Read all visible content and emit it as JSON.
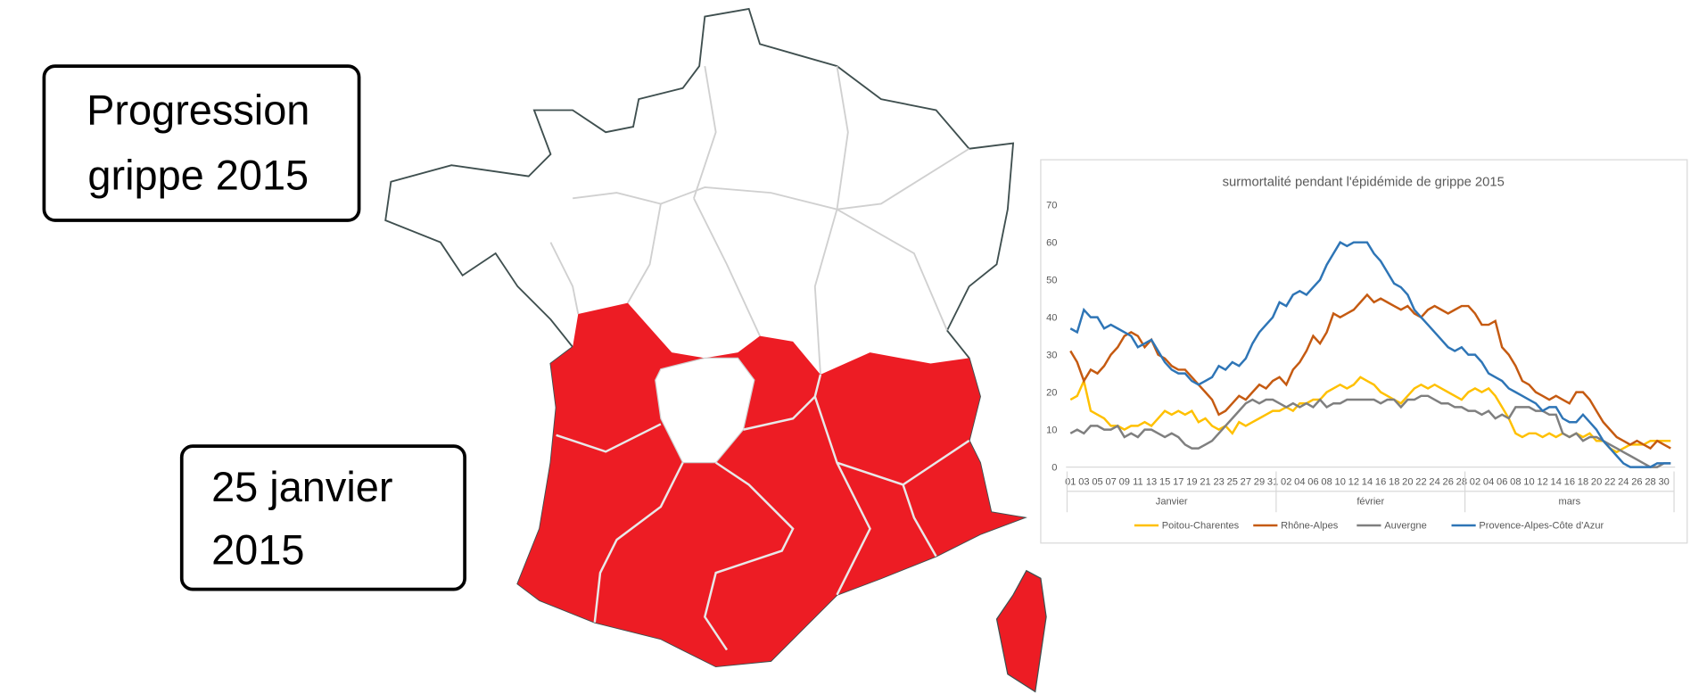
{
  "title_box": {
    "lines": [
      "Progression",
      "grippe 2015"
    ]
  },
  "date_box": {
    "lines": [
      "25 janvier",
      "2015"
    ]
  },
  "chart_data": {
    "type": "line",
    "title": "surmortalité pendant l'épidémide de grippe 2015",
    "categories": [
      "01",
      null,
      "03",
      null,
      "05",
      null,
      "07",
      null,
      "09",
      null,
      "11",
      null,
      "13",
      null,
      "15",
      null,
      "17",
      null,
      "19",
      null,
      "21",
      null,
      "23",
      null,
      "25",
      null,
      "27",
      null,
      "29",
      null,
      "31",
      null,
      "02",
      null,
      "04",
      null,
      "06",
      null,
      "08",
      null,
      "10",
      null,
      "12",
      null,
      "14",
      null,
      "16",
      null,
      "18",
      null,
      "20",
      null,
      "22",
      null,
      "24",
      null,
      "26",
      null,
      "28",
      null,
      "02",
      null,
      "04",
      null,
      "06",
      null,
      "08",
      null,
      "10",
      null,
      "12",
      null,
      "14",
      null,
      "16",
      null,
      "18",
      null,
      "20",
      null,
      "22",
      null,
      "24",
      null,
      "26",
      null,
      "28",
      null,
      "30",
      null
    ],
    "groups": [
      "Janvier",
      "février",
      "mars"
    ],
    "group_sizes": [
      31,
      28,
      31
    ],
    "ylim": [
      0,
      70
    ],
    "yticks": [
      0,
      10,
      20,
      30,
      40,
      50,
      60,
      70
    ],
    "legend": "bottom",
    "series": [
      {
        "name": "Poitou-Charentes",
        "color": "#ffc000",
        "values": [
          18,
          19,
          23,
          15,
          14,
          13,
          11,
          11,
          10,
          11,
          11,
          12,
          11,
          13,
          15,
          14,
          15,
          14,
          15,
          12,
          13,
          11,
          10,
          11,
          9,
          12,
          11,
          12,
          13,
          14,
          15,
          15,
          16,
          15,
          17,
          17,
          18,
          18,
          20,
          21,
          22,
          21,
          22,
          24,
          23,
          22,
          20,
          19,
          18,
          17,
          19,
          21,
          22,
          21,
          22,
          21,
          20,
          19,
          18,
          20,
          21,
          20,
          21,
          19,
          16,
          13,
          9,
          8,
          9,
          9,
          8,
          9,
          8,
          9,
          8,
          9,
          8,
          9,
          7,
          7,
          5,
          4,
          5,
          6,
          6,
          6,
          7,
          7,
          7,
          7
        ]
      },
      {
        "name": "Rhône-Alpes",
        "color": "#c55a11",
        "values": [
          31,
          28,
          23,
          26,
          25,
          27,
          30,
          32,
          35,
          36,
          35,
          32,
          34,
          30,
          29,
          27,
          26,
          26,
          24,
          22,
          20,
          18,
          14,
          15,
          17,
          19,
          18,
          20,
          22,
          21,
          23,
          24,
          22,
          26,
          28,
          31,
          35,
          33,
          36,
          41,
          40,
          41,
          42,
          44,
          46,
          44,
          45,
          44,
          43,
          42,
          43,
          41,
          40,
          42,
          43,
          42,
          41,
          42,
          43,
          43,
          41,
          38,
          38,
          39,
          32,
          30,
          27,
          23,
          22,
          20,
          19,
          18,
          19,
          18,
          17,
          20,
          20,
          18,
          15,
          12,
          10,
          8,
          7,
          6,
          7,
          6,
          5,
          7,
          6,
          5
        ]
      },
      {
        "name": "Auvergne",
        "color": "#7f7f7f",
        "values": [
          9,
          10,
          9,
          11,
          11,
          10,
          10,
          11,
          8,
          9,
          8,
          10,
          10,
          9,
          8,
          9,
          8,
          6,
          5,
          5,
          6,
          7,
          9,
          11,
          13,
          15,
          17,
          18,
          17,
          18,
          18,
          17,
          16,
          17,
          16,
          17,
          16,
          18,
          16,
          17,
          17,
          18,
          18,
          18,
          18,
          18,
          17,
          18,
          18,
          16,
          18,
          18,
          19,
          19,
          18,
          17,
          17,
          16,
          16,
          15,
          15,
          14,
          15,
          13,
          14,
          13,
          16,
          16,
          16,
          15,
          15,
          14,
          14,
          9,
          8,
          9,
          7,
          8,
          8,
          7,
          6,
          5,
          4,
          3,
          2,
          1,
          0,
          0,
          1,
          1
        ]
      },
      {
        "name": "Provence-Alpes-Côte d'Azur",
        "color": "#2e75b6",
        "values": [
          37,
          36,
          42,
          40,
          40,
          37,
          38,
          37,
          36,
          35,
          32,
          33,
          34,
          31,
          28,
          26,
          25,
          25,
          23,
          22,
          23,
          24,
          27,
          26,
          28,
          27,
          29,
          33,
          36,
          38,
          40,
          44,
          43,
          46,
          47,
          46,
          48,
          50,
          54,
          57,
          60,
          59,
          60,
          60,
          60,
          57,
          55,
          52,
          49,
          48,
          46,
          42,
          40,
          38,
          36,
          34,
          32,
          31,
          32,
          30,
          30,
          28,
          25,
          24,
          23,
          21,
          20,
          19,
          18,
          17,
          15,
          16,
          16,
          13,
          12,
          12,
          14,
          12,
          10,
          7,
          5,
          3,
          1,
          0,
          0,
          0,
          0,
          1,
          1,
          1
        ]
      }
    ]
  }
}
